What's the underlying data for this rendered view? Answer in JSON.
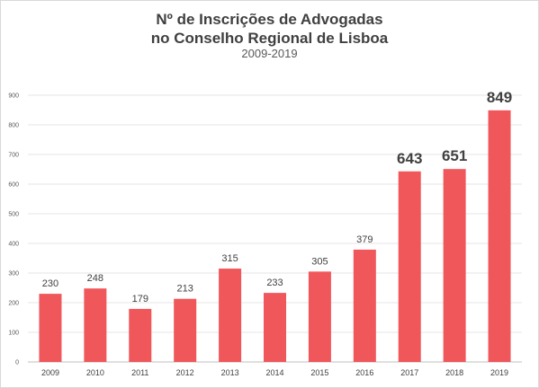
{
  "chart_data": {
    "type": "bar",
    "title_line1": "Nº de Inscrições  de Advogadas",
    "title_line2": "no Conselho Regional de Lisboa",
    "subtitle": "2009-2019",
    "categories": [
      "2009",
      "2010",
      "2011",
      "2012",
      "2013",
      "2014",
      "2015",
      "2016",
      "2017",
      "2018",
      "2019"
    ],
    "values": [
      230,
      248,
      179,
      213,
      315,
      233,
      305,
      379,
      643,
      651,
      849
    ],
    "data_labels": [
      "230",
      "248",
      "179",
      "213",
      "315",
      "233",
      "305",
      "379",
      "643",
      "651",
      "849"
    ],
    "emphasized_labels": [
      "2017",
      "2018",
      "2019"
    ],
    "y_ticks": [
      "0",
      "100",
      "200",
      "300",
      "400",
      "500",
      "600",
      "700",
      "800",
      "900"
    ],
    "ylim": [
      0,
      900
    ],
    "grid": true,
    "legend": "none",
    "bar_color": "#f0575b",
    "grid_color": "#e6e6e6",
    "axis_color": "#bfbfbf"
  }
}
